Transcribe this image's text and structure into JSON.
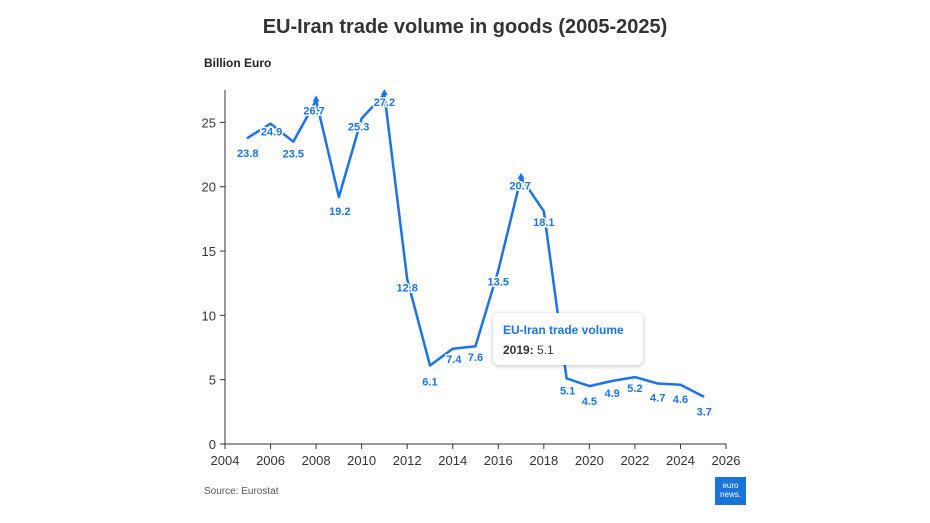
{
  "chart_data": {
    "type": "line",
    "title": "EU-Iran trade volume in goods (2005-2025)",
    "ylabel": "Billion Euro",
    "xlabel": "",
    "series": [
      {
        "name": "EU-Iran trade volume",
        "x": [
          2005,
          2006,
          2007,
          2008,
          2009,
          2010,
          2011,
          2012,
          2013,
          2014,
          2015,
          2016,
          2017,
          2018,
          2019,
          2020,
          2021,
          2022,
          2023,
          2024,
          2025
        ],
        "values": [
          23.8,
          24.9,
          23.5,
          26.7,
          19.2,
          25.3,
          27.2,
          12.8,
          6.1,
          7.4,
          7.6,
          13.5,
          20.7,
          18.1,
          5.1,
          4.5,
          4.9,
          5.2,
          4.7,
          4.6,
          3.7
        ],
        "labels": [
          "23.8",
          "24.9",
          "23.5",
          "26.7",
          "19.2",
          "25.3",
          "27.2",
          "12.8",
          "6.1",
          "7.4",
          "7.6",
          "13.5",
          "20.7",
          "18.1",
          "5.1",
          "4.5",
          "4.9",
          "5.2",
          "4.7",
          "4.6",
          "3.7"
        ],
        "color": "#1a73e8"
      }
    ],
    "xlim": [
      2004,
      2026
    ],
    "ylim": [
      0,
      28
    ],
    "xticks": [
      "2004",
      "2006",
      "2008",
      "2010",
      "2012",
      "2014",
      "2016",
      "2018",
      "2020",
      "2022",
      "2024",
      "2026"
    ],
    "yticks": [
      "0",
      "5",
      "10",
      "15",
      "20",
      "25"
    ],
    "grid": false
  },
  "tooltip": {
    "title": "EU-Iran trade volume",
    "year": "2019:",
    "value": "5.1"
  },
  "source": "Source: Eurostat",
  "logo": {
    "line1": "euro",
    "line2": "news."
  },
  "colors": {
    "line": "#1a73e8",
    "logo": "#1a73d6"
  }
}
